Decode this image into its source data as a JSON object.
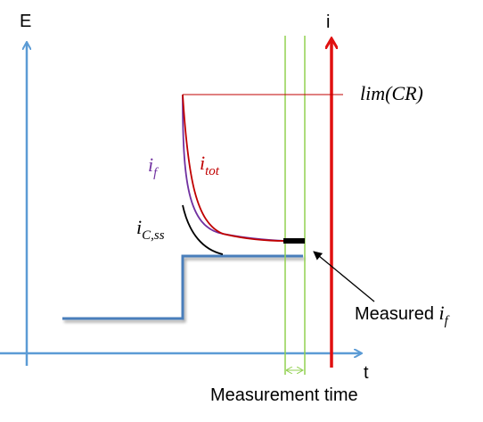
{
  "labels": {
    "e_axis": "E",
    "i_axis": "i",
    "t_axis": "t",
    "limit": "lim(CR)",
    "i_f_base": "i",
    "i_f_sub": "f",
    "i_tot_base": "i",
    "i_tot_sub": "tot",
    "i_css_base": "i",
    "i_css_sub": "C,ss",
    "measured_text": "Measured ",
    "measured_base": "i",
    "measured_sub": "f",
    "measurement_time": "Measurement time"
  },
  "colors": {
    "e_axis": "#5b9bd5",
    "potential_step": "#4a7ebb",
    "i_axis": "#e01010",
    "limit_line": "#c00000",
    "i_f_curve": "#7030a0",
    "i_tot_curve": "#c00000",
    "i_css_curve": "#000000",
    "measurement_window": "#92d050",
    "measured_marker": "#000000"
  }
}
